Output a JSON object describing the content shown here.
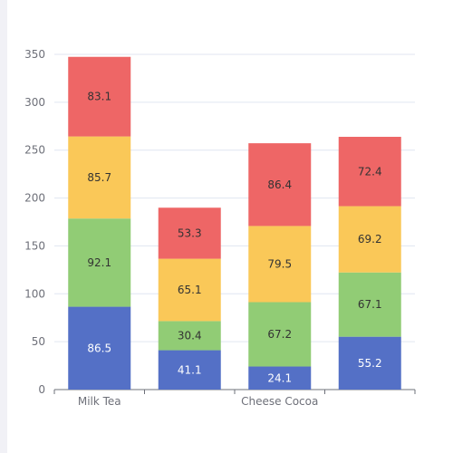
{
  "chart_data": {
    "type": "bar",
    "stacked": true,
    "categories": [
      "Milk Tea",
      "",
      "Cheese Cocoa",
      ""
    ],
    "series": [
      {
        "color": "#5470c6",
        "label_color": "#ffffff",
        "values": [
          86.5,
          41.1,
          24.1,
          55.2
        ]
      },
      {
        "color": "#91cc75",
        "label_color": "#333333",
        "values": [
          92.1,
          30.4,
          67.2,
          67.1
        ]
      },
      {
        "color": "#fac858",
        "label_color": "#333333",
        "values": [
          85.7,
          65.1,
          79.5,
          69.2
        ]
      },
      {
        "color": "#ee6666",
        "label_color": "#333333",
        "values": [
          83.1,
          53.3,
          86.4,
          72.4
        ]
      }
    ],
    "ylim": [
      0,
      350
    ],
    "yticks": [
      0,
      50,
      100,
      150,
      200,
      250,
      300,
      350
    ],
    "grid": true
  }
}
